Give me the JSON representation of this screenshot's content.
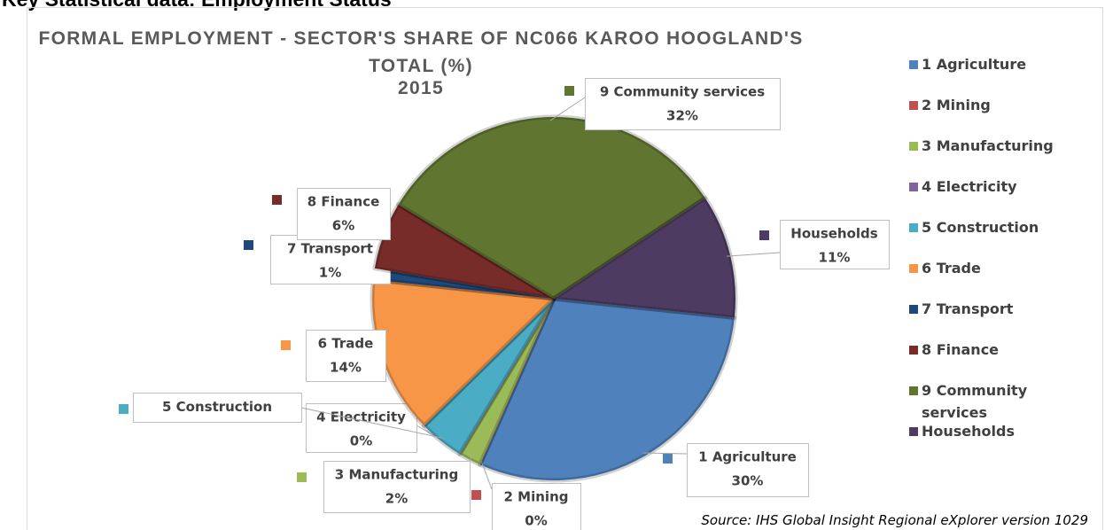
{
  "heading": "Key Statistical data: Employment Status",
  "chart_data": {
    "type": "pie",
    "title": "FORMAL EMPLOYMENT - SECTOR'S SHARE OF NC066 KAROO HOOGLAND'S TOTAL (%)",
    "subtitle": "2015",
    "categories": [
      "1 Agriculture",
      "2 Mining",
      "3 Manufacturing",
      "4 Electricity",
      "5 Construction",
      "6 Trade",
      "7 Transport",
      "8 Finance",
      "9 Community services",
      "Households"
    ],
    "values": [
      30,
      0,
      2,
      0,
      4,
      14,
      1,
      6,
      32,
      11
    ],
    "value_labels": [
      "30%",
      "0%",
      "2%",
      "0%",
      null,
      "14%",
      "1%",
      "6%",
      "32%",
      "11%"
    ],
    "colors": [
      "#4f81bd",
      "#c0504d",
      "#9bbb59",
      "#8064a2",
      "#4bacc6",
      "#f79646",
      "#1f497d",
      "#772c2a",
      "#5f7530",
      "#4d3b62"
    ],
    "legend": "right",
    "source": "Source: IHS Global Insight Regional eXplorer version 1029"
  }
}
